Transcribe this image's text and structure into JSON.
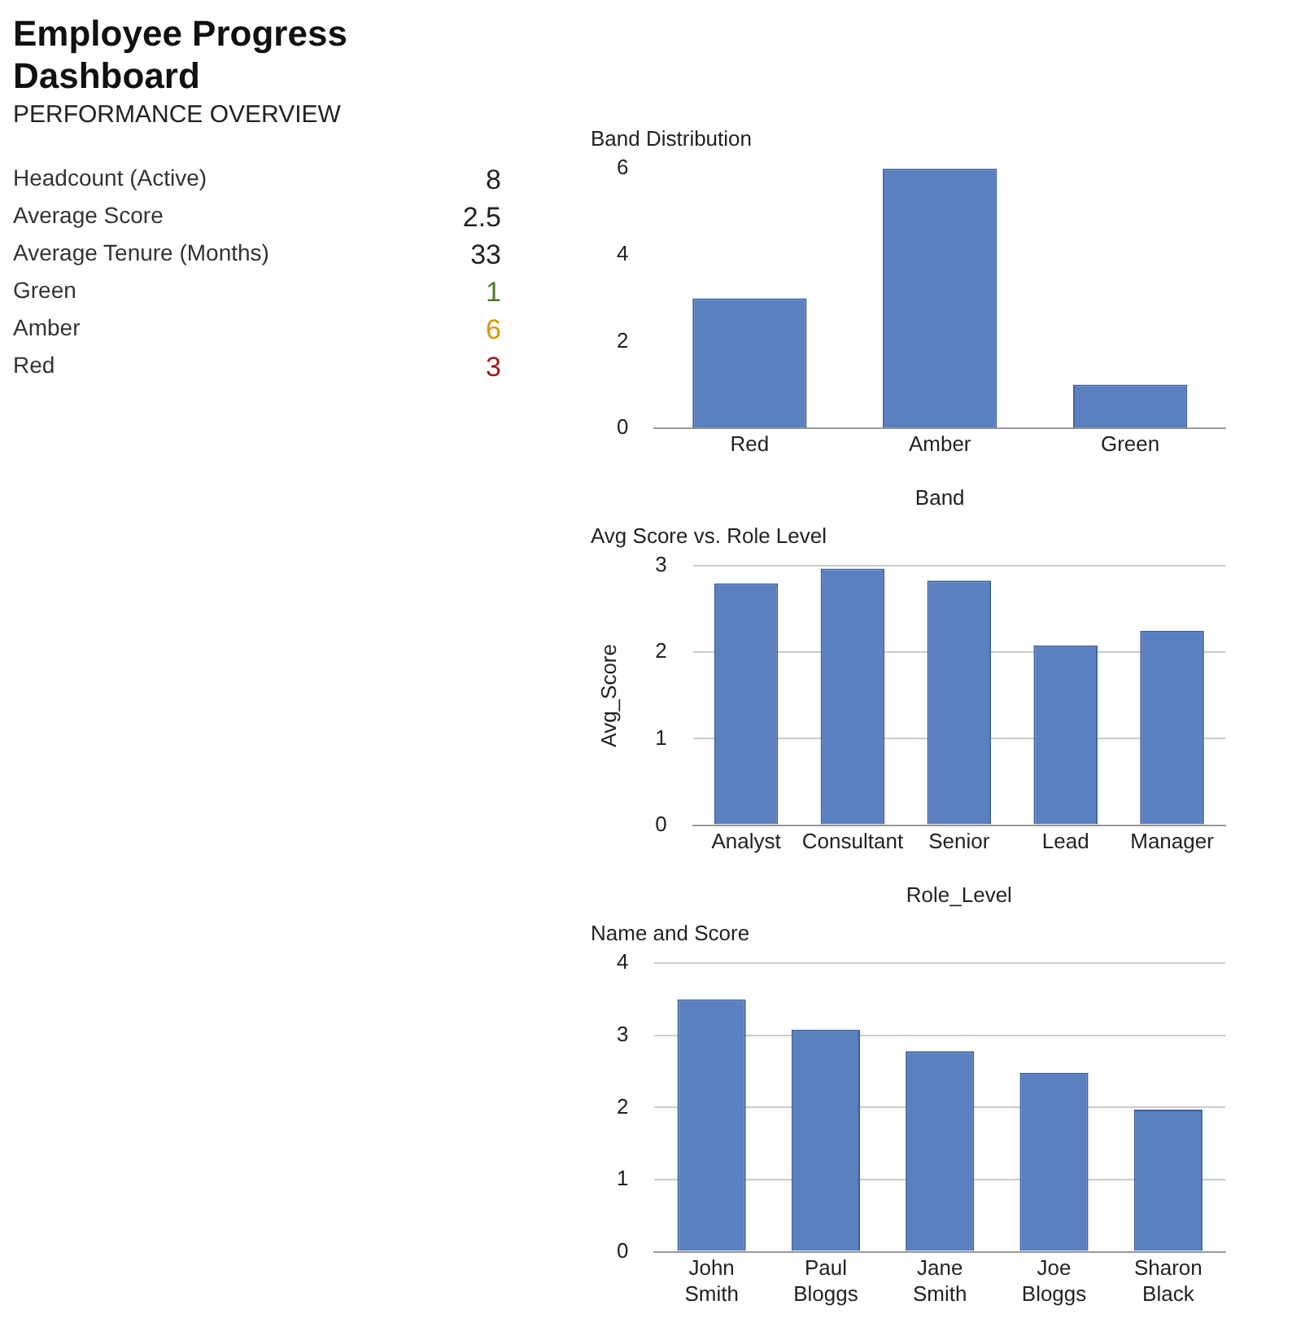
{
  "chart_data": [
    {
      "type": "other",
      "title": "Employee Progress Dashboard",
      "subtitle": "PERFORMANCE OVERVIEW",
      "categories": [
        "Headcount (Active)",
        "Average Score",
        "Average Tenure (Months)",
        "Green",
        "Amber",
        "Red"
      ],
      "values": [
        8,
        2.5,
        33,
        1,
        6,
        3
      ],
      "colors": [
        "#222222",
        "#222222",
        "#222222",
        "#4c7a2e",
        "#d69a00",
        "#a31515"
      ],
      "data_labels": true
    },
    {
      "type": "bar",
      "title": "Band Distribution",
      "xlabel": "Band",
      "categories": [
        "Red",
        "Amber",
        "Green"
      ],
      "values": [
        3,
        6,
        1
      ],
      "color": "#5b80c0",
      "ylim": [
        0,
        6
      ],
      "yticks": [
        0,
        2,
        4,
        6
      ],
      "grid": false
    },
    {
      "type": "bar",
      "title": "Avg Score vs. Role Level",
      "xlabel": "Role_Level",
      "ylabel": "Avg_Score",
      "categories": [
        "Analyst",
        "Consultant",
        "Senior",
        "Lead",
        "Manager"
      ],
      "values": [
        2.8,
        2.97,
        2.83,
        2.08,
        2.25
      ],
      "color": "#5b80c0",
      "ylim": [
        0,
        3
      ],
      "yticks": [
        0,
        1,
        2,
        3
      ],
      "grid": "y"
    },
    {
      "type": "bar",
      "title": "Name and Score",
      "categories": [
        "John Smith",
        "Paul Bloggs",
        "Jane Smith",
        "Joe Bloggs",
        "Sharon Black"
      ],
      "values": [
        3.5,
        3.08,
        2.78,
        2.48,
        1.97
      ],
      "color": "#5b80c0",
      "ylim": [
        0,
        4
      ],
      "yticks": [
        0,
        1,
        2,
        3,
        4
      ],
      "grid": "y"
    }
  ]
}
